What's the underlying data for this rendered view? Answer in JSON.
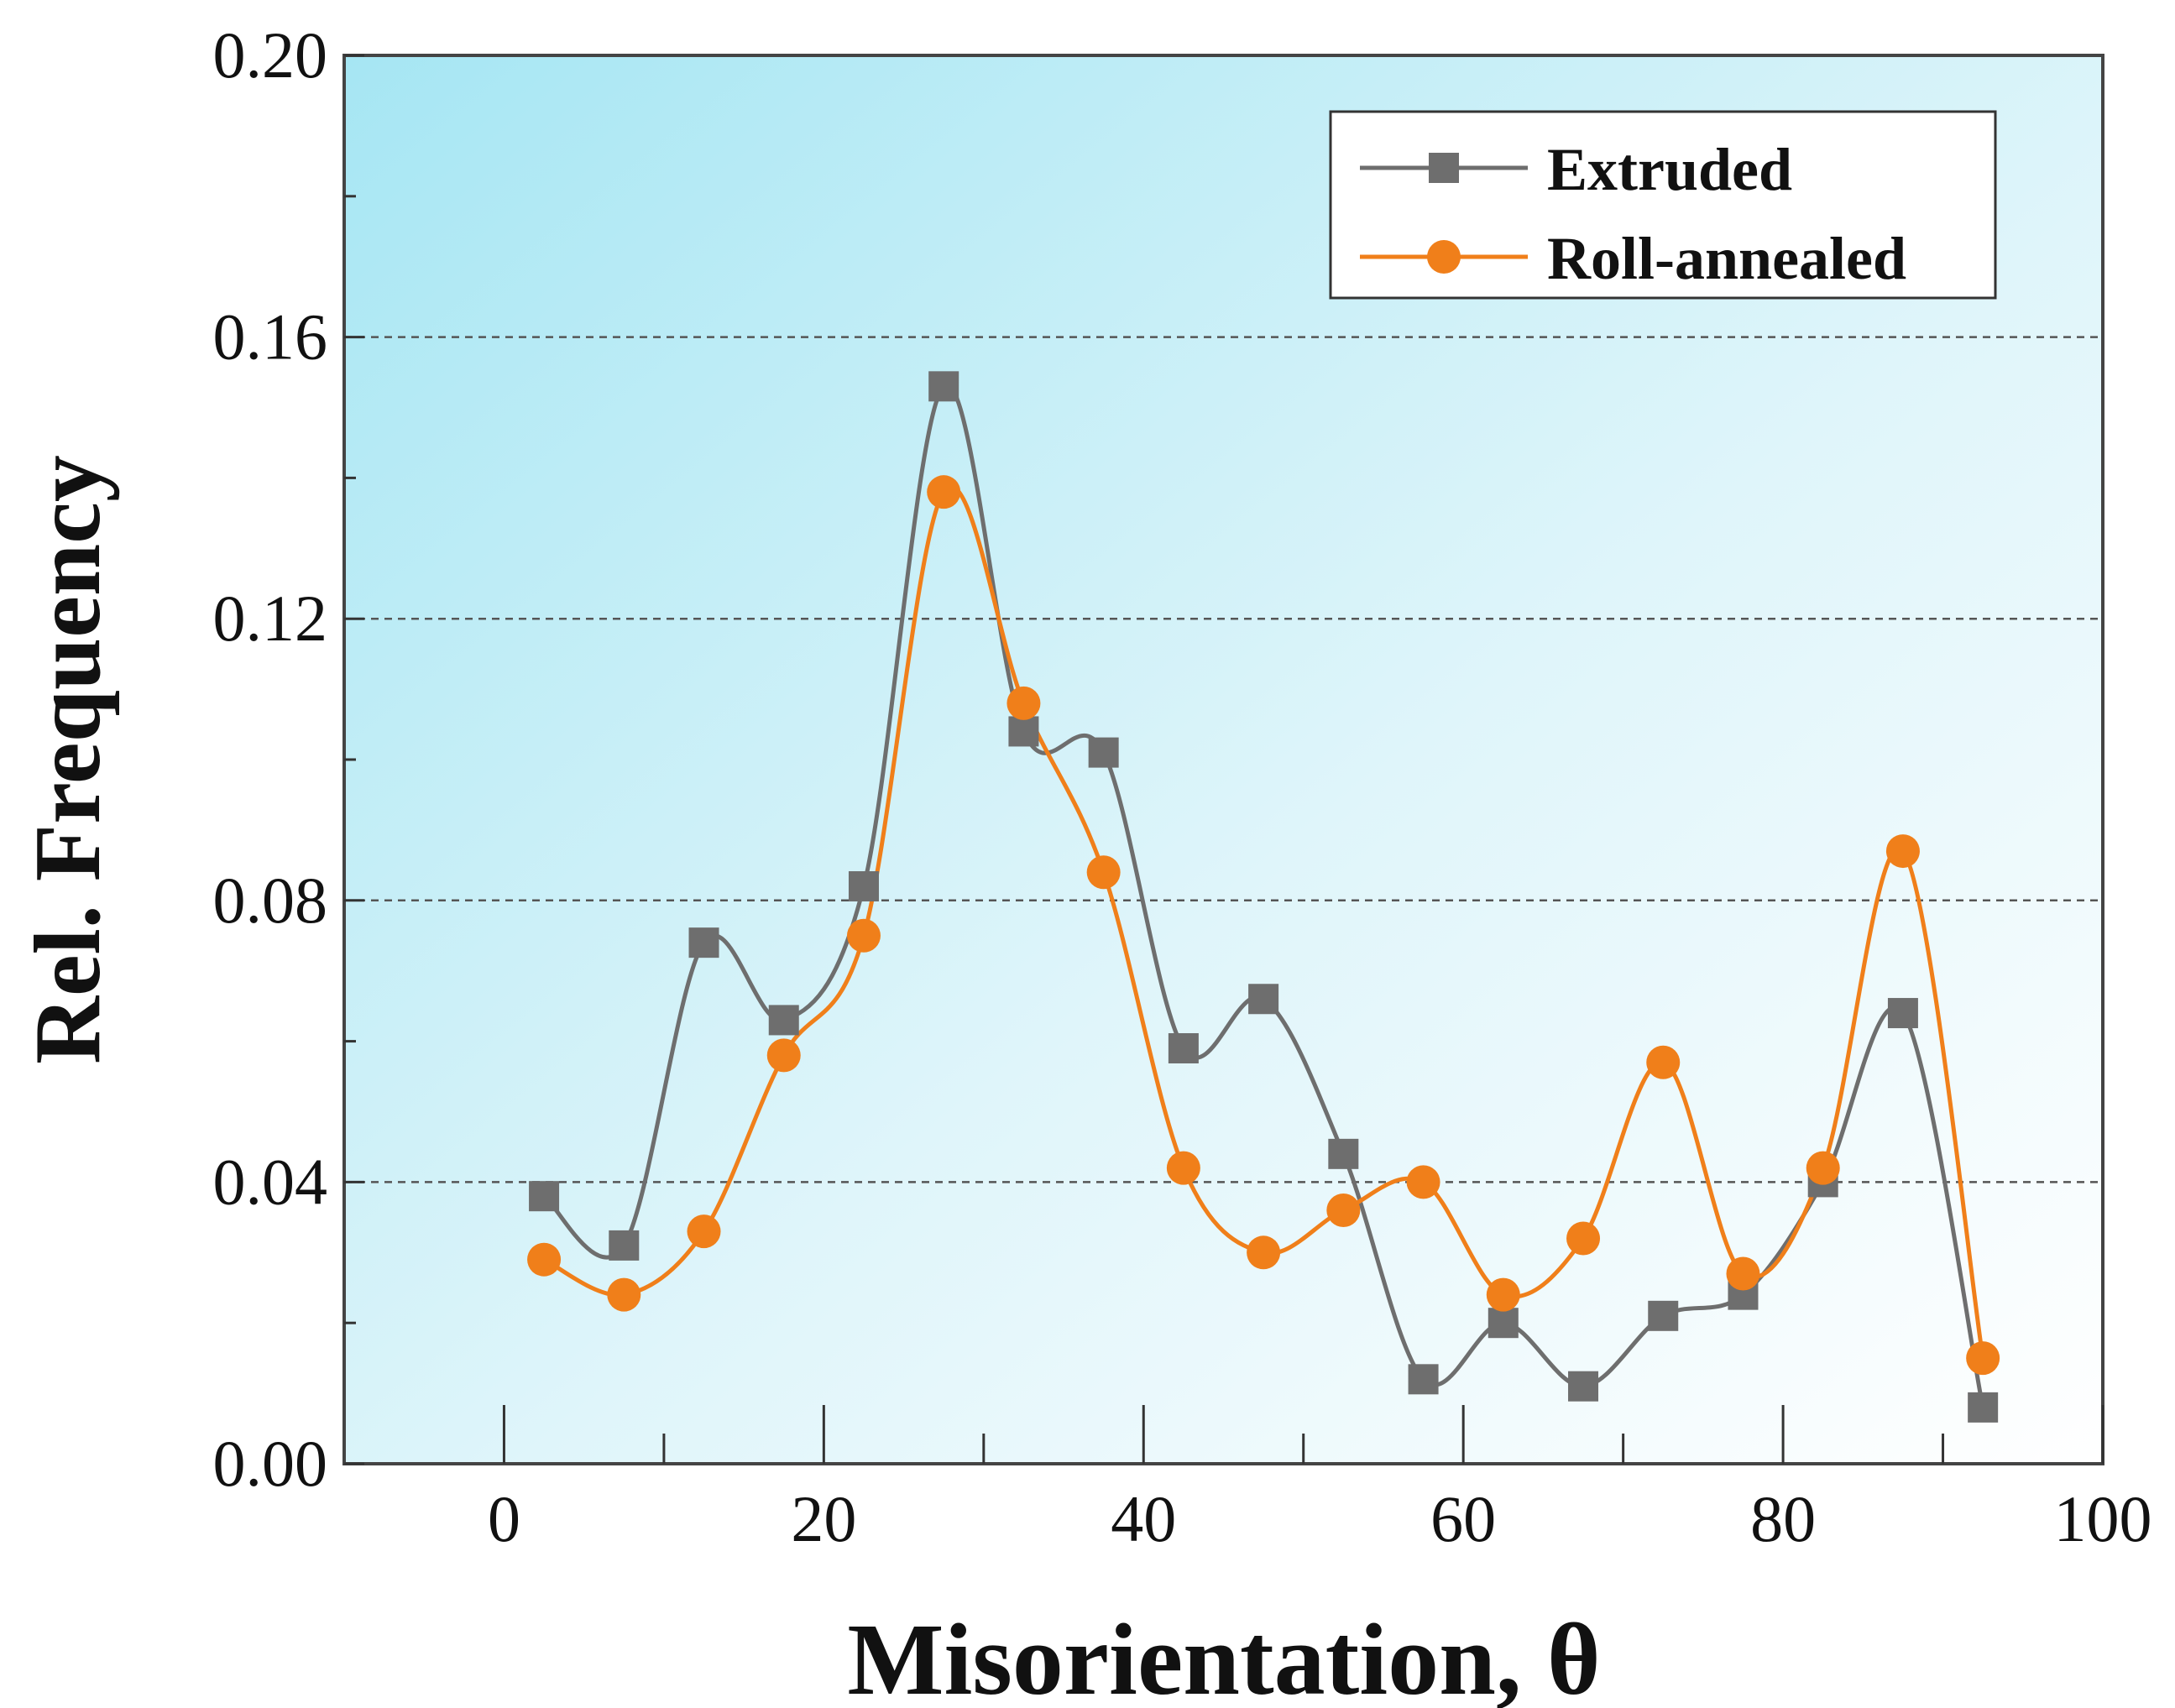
{
  "chart_data": {
    "type": "line",
    "title": "",
    "xlabel": "Misorientation, θ",
    "ylabel": "Rel. Frequency",
    "xlim": [
      -10,
      100
    ],
    "ylim": [
      0,
      0.2
    ],
    "x_ticks": [
      0,
      20,
      40,
      60,
      80,
      100
    ],
    "x_tick_labels": [
      "0",
      "20",
      "40",
      "60",
      "80",
      "100"
    ],
    "y_ticks": [
      0,
      0.04,
      0.08,
      0.12,
      0.16,
      0.2
    ],
    "y_tick_labels": [
      "0.00",
      "0.04",
      "0.08",
      "0.12",
      "0.16",
      "0.20"
    ],
    "y_minor_ticks": [
      0.02,
      0.06,
      0.1,
      0.14,
      0.18
    ],
    "x_minor_ticks": [
      10,
      30,
      50,
      70,
      90
    ],
    "gridlines_y": [
      0.04,
      0.08,
      0.12,
      0.16
    ],
    "legend_position": "top-right",
    "x": [
      2.5,
      7.5,
      12.5,
      17.5,
      22.5,
      27.5,
      32.5,
      37.5,
      42.5,
      47.5,
      52.5,
      57.5,
      62.5,
      67.5,
      72.5,
      77.5,
      82.5,
      87.5,
      92.5
    ],
    "series": [
      {
        "name": "Extruded",
        "color": "#6e6e6e",
        "marker": "square",
        "values": [
          0.038,
          0.031,
          0.074,
          0.063,
          0.082,
          0.153,
          0.104,
          0.101,
          0.059,
          0.066,
          0.044,
          0.012,
          0.02,
          0.011,
          0.021,
          0.024,
          0.04,
          0.064,
          0.008
        ]
      },
      {
        "name": "Roll-annealed",
        "color": "#f07f1a",
        "marker": "circle",
        "values": [
          0.029,
          0.024,
          0.033,
          0.058,
          0.075,
          0.138,
          0.108,
          0.084,
          0.042,
          0.03,
          0.036,
          0.04,
          0.024,
          0.032,
          0.057,
          0.027,
          0.042,
          0.087,
          0.015
        ]
      }
    ]
  }
}
